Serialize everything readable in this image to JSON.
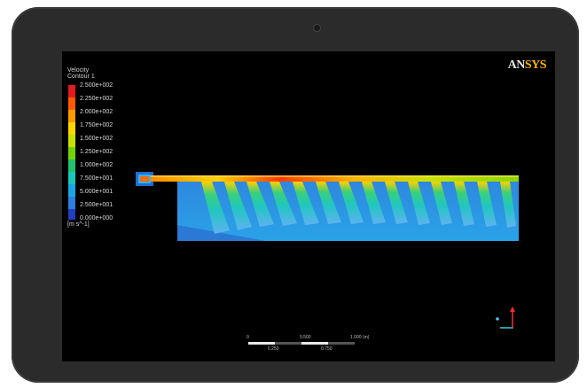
{
  "brand": {
    "prefix": "AN",
    "accent": "SYS",
    "accent_color": "#f6b400"
  },
  "legend": {
    "title_line1": "Velocity",
    "title_line2": "Contour 1",
    "levels": [
      "2.500e+002",
      "2.250e+002",
      "2.000e+002",
      "1.750e+002",
      "1.500e+002",
      "1.250e+002",
      "1.000e+002",
      "7.500e+001",
      "5.000e+001",
      "2.500e+001",
      "0.000e+000"
    ],
    "units": "[m s^-1]",
    "colors": [
      "#e31a1c",
      "#ff5a00",
      "#ff9a00",
      "#ffd500",
      "#c8e000",
      "#6fd400",
      "#22c26b",
      "#19c7b9",
      "#1aa6e6",
      "#2f7fe0",
      "#1f3fbf"
    ]
  },
  "scale_bar": {
    "labels_top": [
      "0",
      "0.500",
      "1.000  (m)"
    ],
    "labels_bottom": [
      "0.250",
      "0.750"
    ]
  },
  "axes": {
    "x_color": "#2bd6d6",
    "y_color": "#ff2a2a",
    "z_color": "#46c8ff"
  }
}
